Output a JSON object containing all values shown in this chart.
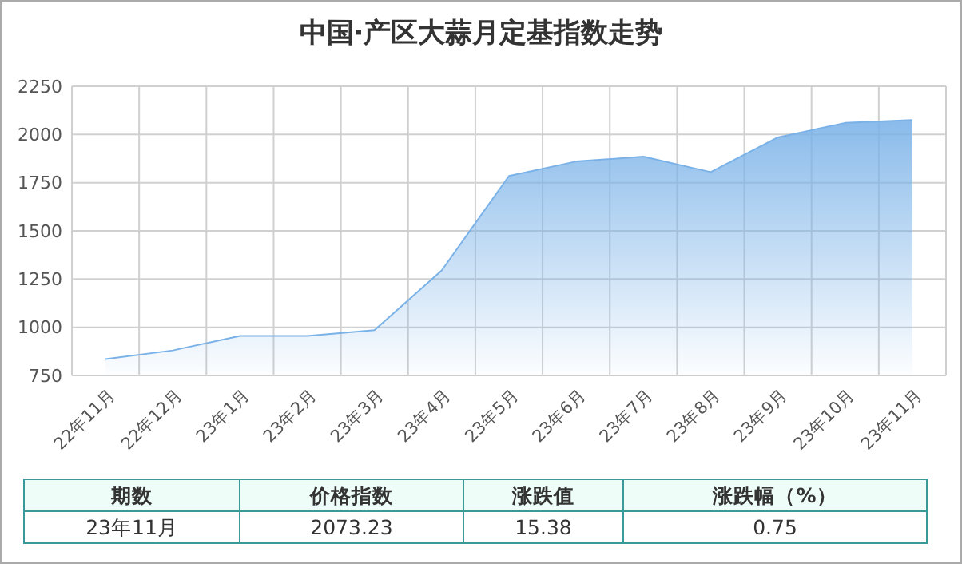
{
  "chart_data": {
    "type": "area",
    "title": "中国·产区大蒜月定基指数走势",
    "categories": [
      "22年11月",
      "22年12月",
      "23年1月",
      "23年2月",
      "23年3月",
      "23年4月",
      "23年5月",
      "23年6月",
      "23年7月",
      "23年8月",
      "23年9月",
      "23年10月",
      "23年11月"
    ],
    "series": [
      {
        "color": "#7ab2e8",
        "values": [
          835,
          880,
          955,
          955,
          985,
          1295,
          1785,
          1860,
          1885,
          1805,
          1985,
          2060,
          2075
        ]
      }
    ],
    "ylim": [
      750,
      2250
    ],
    "yticks": [
      750,
      1000,
      1250,
      1500,
      1750,
      2000,
      2250
    ],
    "grid": true,
    "annotations": [
      "期数",
      "价格指数",
      "涨跌值",
      "涨跌幅（%）",
      "23年11月",
      "2073.23",
      "15.38",
      "0.75"
    ]
  }
}
